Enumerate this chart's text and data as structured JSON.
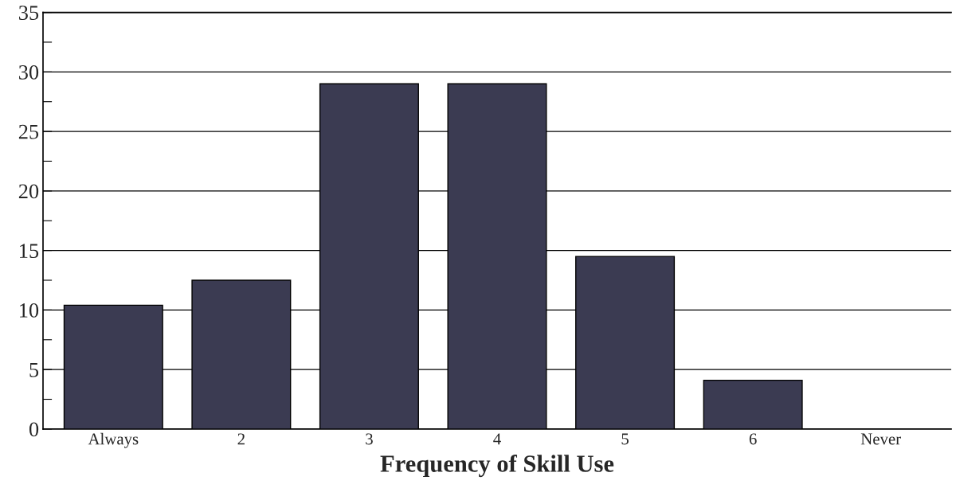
{
  "chart_data": {
    "type": "bar",
    "xlabel": "Frequency of Skill Use",
    "categories": [
      "Always",
      "2",
      "3",
      "4",
      "5",
      "6",
      "Never"
    ],
    "values": [
      10.4,
      12.5,
      29,
      29,
      14.5,
      4.1,
      0
    ],
    "color": "#3b3b52",
    "ylim": [
      0,
      35
    ],
    "yticks": [
      0,
      {
        "value": 2.5,
        "label": null
      },
      5,
      {
        "value": 7.5,
        "label": null
      },
      10,
      {
        "value": 12.5,
        "label": null
      },
      15,
      {
        "value": 17.5,
        "label": null
      },
      20,
      {
        "value": 22.5,
        "label": null
      },
      25,
      {
        "value": 27.5,
        "label": null
      },
      30,
      {
        "value": 32.5,
        "label": null
      },
      35
    ],
    "grid": "y"
  }
}
